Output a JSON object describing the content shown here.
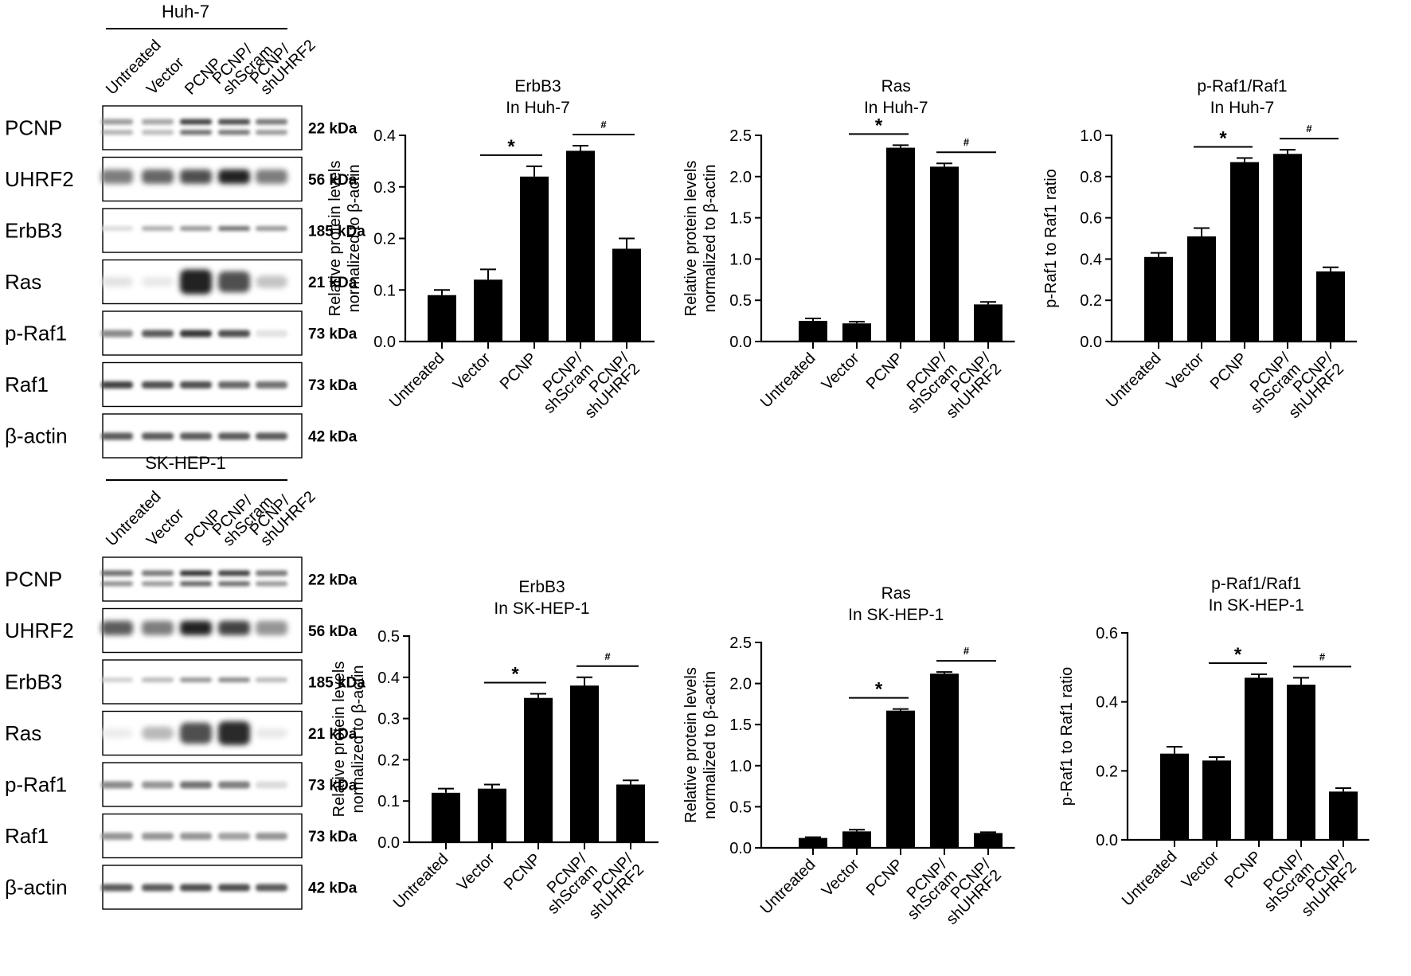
{
  "panels": [
    {
      "cell_line": "Huh-7",
      "lane_labels": [
        [
          "Untreated"
        ],
        [
          "Vector"
        ],
        [
          "PCNP"
        ],
        [
          "PCNP/",
          "shScram"
        ],
        [
          "PCNP/",
          "shUHRF2"
        ]
      ],
      "blots": [
        {
          "protein": "PCNP",
          "kda": "22 kDa",
          "intensity": [
            0.45,
            0.4,
            0.85,
            0.8,
            0.6
          ],
          "style": "double"
        },
        {
          "protein": "UHRF2",
          "kda": "56 kDa",
          "intensity": [
            0.55,
            0.65,
            0.75,
            0.95,
            0.55
          ],
          "style": "smear"
        },
        {
          "protein": "ErbB3",
          "kda": "185 kDa",
          "intensity": [
            0.15,
            0.35,
            0.45,
            0.6,
            0.45
          ],
          "style": "thin"
        },
        {
          "protein": "Ras",
          "kda": "21 kDa",
          "intensity": [
            0.12,
            0.1,
            0.95,
            0.75,
            0.25
          ],
          "style": "blob"
        },
        {
          "protein": "p-Raf1",
          "kda": "73 kDa",
          "intensity": [
            0.5,
            0.7,
            0.85,
            0.75,
            0.12
          ],
          "style": "band"
        },
        {
          "protein": "Raf1",
          "kda": "73 kDa",
          "intensity": [
            0.8,
            0.75,
            0.75,
            0.65,
            0.6
          ],
          "style": "band"
        },
        {
          "protein": "β-actin",
          "kda": "42 kDa",
          "intensity": [
            0.7,
            0.7,
            0.7,
            0.7,
            0.7
          ],
          "style": "band"
        }
      ]
    },
    {
      "cell_line": "SK-HEP-1",
      "lane_labels": [
        [
          "Untreated"
        ],
        [
          "Vector"
        ],
        [
          "PCNP"
        ],
        [
          "PCNP/",
          "shScram"
        ],
        [
          "PCNP/",
          "shUHRF2"
        ]
      ],
      "blots": [
        {
          "protein": "PCNP",
          "kda": "22 kDa",
          "intensity": [
            0.65,
            0.6,
            0.9,
            0.85,
            0.6
          ],
          "style": "double"
        },
        {
          "protein": "UHRF2",
          "kda": "56 kDa",
          "intensity": [
            0.7,
            0.55,
            0.95,
            0.8,
            0.45
          ],
          "style": "smear"
        },
        {
          "protein": "ErbB3",
          "kda": "185 kDa",
          "intensity": [
            0.2,
            0.3,
            0.45,
            0.5,
            0.3
          ],
          "style": "thin"
        },
        {
          "protein": "Ras",
          "kda": "21 kDa",
          "intensity": [
            0.08,
            0.3,
            0.75,
            0.9,
            0.1
          ],
          "style": "blob"
        },
        {
          "protein": "p-Raf1",
          "kda": "73 kDa",
          "intensity": [
            0.5,
            0.45,
            0.6,
            0.55,
            0.15
          ],
          "style": "band"
        },
        {
          "protein": "Raf1",
          "kda": "73 kDa",
          "intensity": [
            0.45,
            0.45,
            0.45,
            0.4,
            0.45
          ],
          "style": "band"
        },
        {
          "protein": "β-actin",
          "kda": "42 kDa",
          "intensity": [
            0.7,
            0.7,
            0.75,
            0.75,
            0.7
          ],
          "style": "band"
        }
      ]
    }
  ],
  "chart_data": [
    {
      "type": "bar",
      "title": [
        "ErbB3",
        "In Huh-7"
      ],
      "categories": [
        [
          "Untreated"
        ],
        [
          "Vector"
        ],
        [
          "PCNP"
        ],
        [
          "PCNP/",
          "shScram"
        ],
        [
          "PCNP/",
          "shUHRF2"
        ]
      ],
      "values": [
        0.09,
        0.12,
        0.32,
        0.37,
        0.18
      ],
      "errors": [
        0.01,
        0.02,
        0.02,
        0.01,
        0.02
      ],
      "ylabel": [
        "Relative protein levels",
        "normalized to β-actin"
      ],
      "ylim": [
        0,
        0.4
      ],
      "yticks": [
        "0.0",
        "0.1",
        "0.2",
        "0.3",
        "0.4"
      ],
      "significance": [
        {
          "symbol": "*",
          "from": 1,
          "to": 2
        },
        {
          "symbol": "#",
          "from": 3,
          "to": 4
        }
      ]
    },
    {
      "type": "bar",
      "title": [
        "Ras",
        "In Huh-7"
      ],
      "categories": [
        [
          "Untreated"
        ],
        [
          "Vector"
        ],
        [
          "PCNP"
        ],
        [
          "PCNP/",
          "shScram"
        ],
        [
          "PCNP/",
          "shUHRF2"
        ]
      ],
      "values": [
        0.25,
        0.22,
        2.35,
        2.12,
        0.45
      ],
      "errors": [
        0.03,
        0.02,
        0.03,
        0.04,
        0.03
      ],
      "ylabel": [
        "Relative protein levels",
        "normalized to β-actin"
      ],
      "ylim": [
        0,
        2.5
      ],
      "yticks": [
        "0.0",
        "0.5",
        "1.0",
        "1.5",
        "2.0",
        "2.5"
      ],
      "significance": [
        {
          "symbol": "*",
          "from": 1,
          "to": 2
        },
        {
          "symbol": "#",
          "from": 3,
          "to": 4
        }
      ]
    },
    {
      "type": "bar",
      "title": [
        "p-Raf1/Raf1",
        "In Huh-7"
      ],
      "categories": [
        [
          "Untreated"
        ],
        [
          "Vector"
        ],
        [
          "PCNP"
        ],
        [
          "PCNP/",
          "shScram"
        ],
        [
          "PCNP/",
          "shUHRF2"
        ]
      ],
      "values": [
        0.41,
        0.51,
        0.87,
        0.91,
        0.34
      ],
      "errors": [
        0.02,
        0.04,
        0.02,
        0.02,
        0.02
      ],
      "ylabel": [
        "p-Raf1 to Raf1 ratio"
      ],
      "ylim": [
        0,
        1.0
      ],
      "yticks": [
        "0.0",
        "0.2",
        "0.4",
        "0.6",
        "0.8",
        "1.0"
      ],
      "significance": [
        {
          "symbol": "*",
          "from": 1,
          "to": 2
        },
        {
          "symbol": "#",
          "from": 3,
          "to": 4
        }
      ]
    },
    {
      "type": "bar",
      "title": [
        "ErbB3",
        "In SK-HEP-1"
      ],
      "categories": [
        [
          "Untreated"
        ],
        [
          "Vector"
        ],
        [
          "PCNP"
        ],
        [
          "PCNP/",
          "shScram"
        ],
        [
          "PCNP/",
          "shUHRF2"
        ]
      ],
      "values": [
        0.12,
        0.13,
        0.35,
        0.38,
        0.14
      ],
      "errors": [
        0.01,
        0.01,
        0.01,
        0.02,
        0.01
      ],
      "ylabel": [
        "Relative protein levels",
        "normalized to β-actin"
      ],
      "ylim": [
        0,
        0.5
      ],
      "yticks": [
        "0.0",
        "0.1",
        "0.2",
        "0.3",
        "0.4",
        "0.5"
      ],
      "significance": [
        {
          "symbol": "*",
          "from": 1,
          "to": 2
        },
        {
          "symbol": "#",
          "from": 3,
          "to": 4
        }
      ]
    },
    {
      "type": "bar",
      "title": [
        "Ras",
        "In SK-HEP-1"
      ],
      "categories": [
        [
          "Untreated"
        ],
        [
          "Vector"
        ],
        [
          "PCNP"
        ],
        [
          "PCNP/",
          "shScram"
        ],
        [
          "PCNP/",
          "shUHRF2"
        ]
      ],
      "values": [
        0.12,
        0.2,
        1.67,
        2.12,
        0.18
      ],
      "errors": [
        0.01,
        0.02,
        0.02,
        0.02,
        0.01
      ],
      "ylabel": [
        "Relative protein levels",
        "normalized to β-actin"
      ],
      "ylim": [
        0,
        2.5
      ],
      "yticks": [
        "0.0",
        "0.5",
        "1.0",
        "1.5",
        "2.0",
        "2.5"
      ],
      "significance": [
        {
          "symbol": "*",
          "from": 1,
          "to": 2
        },
        {
          "symbol": "#",
          "from": 3,
          "to": 4
        }
      ]
    },
    {
      "type": "bar",
      "title": [
        "p-Raf1/Raf1",
        "In SK-HEP-1"
      ],
      "categories": [
        [
          "Untreated"
        ],
        [
          "Vector"
        ],
        [
          "PCNP"
        ],
        [
          "PCNP/",
          "shScram"
        ],
        [
          "PCNP/",
          "shUHRF2"
        ]
      ],
      "values": [
        0.25,
        0.23,
        0.47,
        0.45,
        0.14
      ],
      "errors": [
        0.02,
        0.01,
        0.01,
        0.02,
        0.01
      ],
      "ylabel": [
        "p-Raf1 to Raf1 ratio"
      ],
      "ylim": [
        0,
        0.6
      ],
      "yticks": [
        "0.0",
        "0.2",
        "0.4",
        "0.6"
      ],
      "significance": [
        {
          "symbol": "*",
          "from": 1,
          "to": 2
        },
        {
          "symbol": "#",
          "from": 3,
          "to": 4
        }
      ]
    }
  ]
}
